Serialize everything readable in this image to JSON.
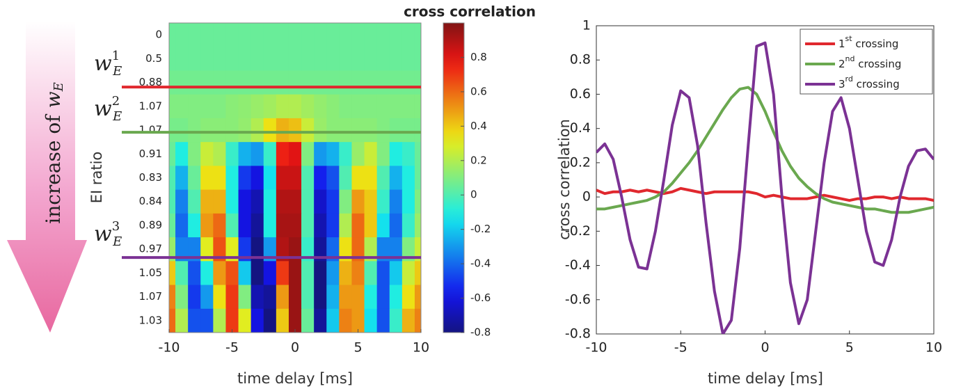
{
  "chart_data": [
    {
      "type": "heatmap",
      "title": "cross correlation",
      "x": [
        -10,
        -9,
        -8,
        -7,
        -6,
        -5,
        -4,
        -3,
        -2,
        -1,
        0,
        1,
        2,
        3,
        4,
        5,
        6,
        7,
        8,
        9,
        10
      ],
      "xlim": [
        -10,
        10
      ],
      "xticks": [
        -10,
        -5,
        0,
        5,
        10
      ],
      "xlabel": "time delay [ms]",
      "ylabel": "EI ratio",
      "rows": [
        "0",
        "0.5",
        "0.88",
        "1.07",
        "1.07",
        "0.91",
        "0.83",
        "0.84",
        "0.89",
        "0.97",
        "1.05",
        "1.07",
        "1.03"
      ],
      "z": [
        [
          0.05,
          0.05,
          0.05,
          0.05,
          0.05,
          0.05,
          0.05,
          0.05,
          0.05,
          0.05,
          0.05,
          0.05,
          0.05,
          0.05,
          0.05,
          0.05,
          0.05,
          0.05,
          0.05,
          0.05,
          0.05
        ],
        [
          0.05,
          0.05,
          0.05,
          0.05,
          0.05,
          0.05,
          0.05,
          0.05,
          0.05,
          0.05,
          0.05,
          0.05,
          0.05,
          0.05,
          0.05,
          0.05,
          0.05,
          0.05,
          0.05,
          0.05,
          0.05
        ],
        [
          0.07,
          0.07,
          0.07,
          0.07,
          0.07,
          0.07,
          0.07,
          0.07,
          0.07,
          0.07,
          0.07,
          0.07,
          0.07,
          0.07,
          0.07,
          0.07,
          0.07,
          0.07,
          0.07,
          0.07,
          0.07
        ],
        [
          0.1,
          0.1,
          0.1,
          0.1,
          0.1,
          0.12,
          0.13,
          0.15,
          0.17,
          0.2,
          0.2,
          0.17,
          0.14,
          0.12,
          0.1,
          0.1,
          0.1,
          0.1,
          0.1,
          0.1,
          0.1
        ],
        [
          0.08,
          0.08,
          0.1,
          0.12,
          0.12,
          0.12,
          0.14,
          0.2,
          0.35,
          0.45,
          0.42,
          0.25,
          0.15,
          0.12,
          0.12,
          0.12,
          0.12,
          0.1,
          0.08,
          0.08,
          0.08
        ],
        [
          0.05,
          -0.1,
          0.1,
          0.25,
          0.2,
          -0.05,
          -0.25,
          -0.3,
          -0.05,
          0.75,
          0.8,
          0.1,
          -0.3,
          -0.25,
          -0.05,
          0.15,
          0.25,
          0.1,
          -0.1,
          -0.05,
          0.05
        ],
        [
          0.0,
          -0.25,
          0.05,
          0.35,
          0.35,
          -0.1,
          -0.5,
          -0.6,
          -0.15,
          0.85,
          0.85,
          0.0,
          -0.55,
          -0.45,
          0.0,
          0.35,
          0.35,
          0.0,
          -0.25,
          -0.1,
          0.05
        ],
        [
          0.0,
          -0.35,
          0.0,
          0.45,
          0.45,
          -0.1,
          -0.6,
          -0.7,
          -0.1,
          0.9,
          0.9,
          0.0,
          -0.65,
          -0.5,
          0.1,
          0.5,
          0.4,
          -0.05,
          -0.35,
          -0.1,
          0.1
        ],
        [
          0.05,
          -0.4,
          -0.1,
          0.5,
          0.6,
          0.0,
          -0.6,
          -0.75,
          -0.1,
          0.92,
          0.92,
          0.0,
          -0.7,
          -0.5,
          0.2,
          0.6,
          0.4,
          -0.15,
          -0.4,
          -0.05,
          0.15
        ],
        [
          0.15,
          -0.35,
          -0.35,
          0.3,
          0.65,
          0.3,
          -0.5,
          -0.8,
          -0.3,
          0.9,
          0.95,
          -0.05,
          -0.75,
          -0.4,
          0.35,
          0.6,
          0.2,
          -0.35,
          -0.35,
          0.1,
          0.25
        ],
        [
          0.4,
          0.0,
          -0.45,
          -0.1,
          0.5,
          0.65,
          -0.2,
          -0.8,
          -0.6,
          0.7,
          0.95,
          0.0,
          -0.8,
          -0.3,
          0.45,
          0.55,
          0.0,
          -0.45,
          -0.2,
          0.25,
          0.4
        ],
        [
          0.55,
          0.1,
          -0.5,
          -0.3,
          0.35,
          0.7,
          0.1,
          -0.7,
          -0.75,
          0.5,
          0.95,
          0.0,
          -0.8,
          -0.25,
          0.5,
          0.5,
          -0.1,
          -0.45,
          -0.1,
          0.35,
          0.5
        ],
        [
          0.6,
          0.2,
          -0.45,
          -0.45,
          0.2,
          0.7,
          0.3,
          -0.6,
          -0.8,
          0.4,
          0.95,
          0.05,
          -0.75,
          -0.2,
          0.55,
          0.5,
          -0.15,
          -0.45,
          -0.05,
          0.45,
          0.55
        ]
      ],
      "clim": [
        -0.8,
        1
      ],
      "cticks": [
        -0.8,
        -0.6,
        -0.4,
        -0.2,
        0,
        0.2,
        0.4,
        0.6,
        0.8
      ],
      "markers": [
        {
          "row": 2.19,
          "color": "#e0282e",
          "label": {
            "base": "w",
            "sub": "E",
            "sup": "1"
          }
        },
        {
          "row": 4.09,
          "color": "#6aa84f",
          "label": {
            "base": "w",
            "sub": "E",
            "sup": "2"
          }
        },
        {
          "row": 9.35,
          "color": "#7b3294",
          "label": {
            "base": "w",
            "sub": "E",
            "sup": "3"
          }
        }
      ],
      "arrow_label": {
        "text": "increase of",
        "var": "w",
        "sub": "E"
      }
    },
    {
      "type": "line",
      "x": [
        -10,
        -9.5,
        -9,
        -8.5,
        -8,
        -7.5,
        -7,
        -6.5,
        -6,
        -5.5,
        -5,
        -4.5,
        -4,
        -3.5,
        -3,
        -2.5,
        -2,
        -1.5,
        -1,
        -0.5,
        0,
        0.5,
        1,
        1.5,
        2,
        2.5,
        3,
        3.5,
        4,
        4.5,
        5,
        5.5,
        6,
        6.5,
        7,
        7.5,
        8,
        8.5,
        9,
        9.5,
        10
      ],
      "xlim": [
        -10,
        10
      ],
      "xticks": [
        -10,
        -5,
        0,
        5,
        10
      ],
      "ylim": [
        -0.8,
        1
      ],
      "yticks": [
        -0.8,
        -0.6,
        -0.4,
        -0.2,
        0,
        0.2,
        0.4,
        0.6,
        0.8,
        1
      ],
      "xlabel": "time delay [ms]",
      "ylabel": "cross correlation",
      "legend": "upper right",
      "series": [
        {
          "name": "1st crossing",
          "color": "#e0282e",
          "values": [
            0.04,
            0.02,
            0.03,
            0.03,
            0.04,
            0.03,
            0.04,
            0.03,
            0.02,
            0.03,
            0.05,
            0.04,
            0.03,
            0.02,
            0.03,
            0.03,
            0.03,
            0.03,
            0.03,
            0.02,
            0.0,
            0.01,
            0.0,
            -0.01,
            -0.01,
            -0.01,
            0.0,
            0.01,
            0.0,
            -0.01,
            -0.02,
            -0.01,
            -0.01,
            0.0,
            0.0,
            -0.01,
            0.0,
            -0.01,
            -0.01,
            -0.01,
            -0.02
          ]
        },
        {
          "name": "2nd crossing",
          "color": "#6aa84f",
          "values": [
            -0.07,
            -0.07,
            -0.06,
            -0.05,
            -0.04,
            -0.03,
            -0.02,
            0.0,
            0.03,
            0.08,
            0.14,
            0.2,
            0.27,
            0.35,
            0.43,
            0.51,
            0.58,
            0.63,
            0.64,
            0.6,
            0.5,
            0.38,
            0.27,
            0.18,
            0.11,
            0.06,
            0.02,
            -0.01,
            -0.03,
            -0.04,
            -0.05,
            -0.06,
            -0.07,
            -0.07,
            -0.08,
            -0.09,
            -0.09,
            -0.09,
            -0.08,
            -0.07,
            -0.06
          ]
        },
        {
          "name": "3rd crossing",
          "color": "#7b3294",
          "values": [
            0.26,
            0.31,
            0.22,
            0.0,
            -0.25,
            -0.41,
            -0.42,
            -0.2,
            0.1,
            0.42,
            0.62,
            0.58,
            0.3,
            -0.15,
            -0.55,
            -0.8,
            -0.72,
            -0.3,
            0.3,
            0.88,
            0.9,
            0.6,
            0.0,
            -0.5,
            -0.74,
            -0.6,
            -0.2,
            0.2,
            0.5,
            0.58,
            0.4,
            0.1,
            -0.2,
            -0.38,
            -0.4,
            -0.25,
            0.0,
            0.18,
            0.27,
            0.28,
            0.22
          ]
        }
      ]
    }
  ]
}
